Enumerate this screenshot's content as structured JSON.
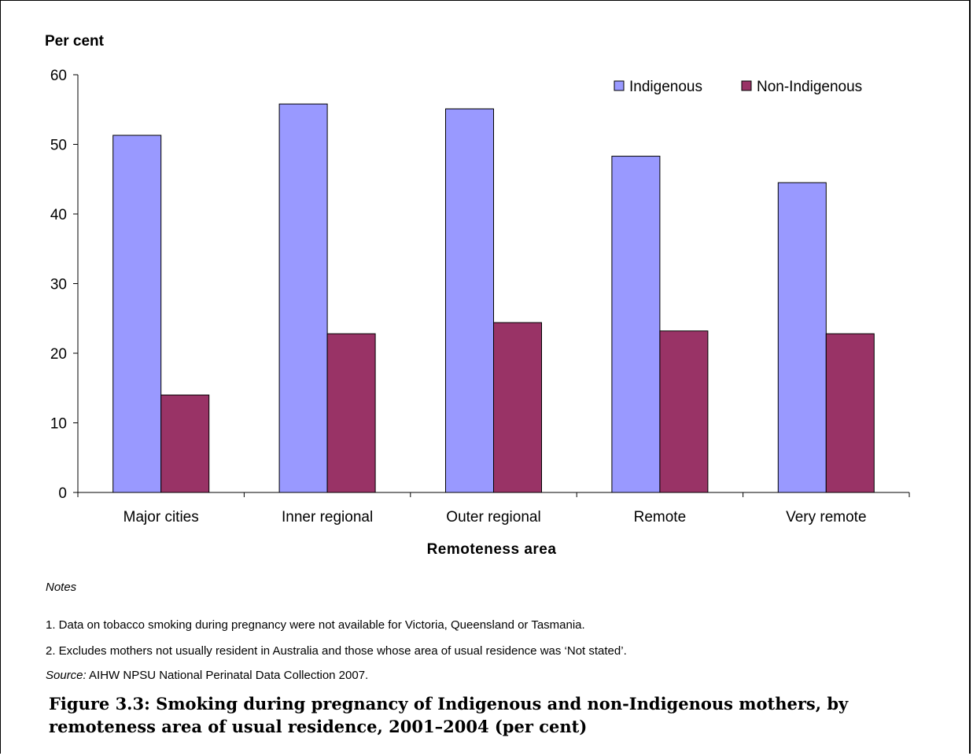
{
  "chart_data": {
    "type": "bar",
    "ylabel": "Per cent",
    "xlabel": "Remoteness area",
    "ylim": [
      0,
      60
    ],
    "yticks": [
      0,
      10,
      20,
      30,
      40,
      50,
      60
    ],
    "grid": false,
    "legend_position": "top-right",
    "categories": [
      "Major cities",
      "Inner regional",
      "Outer regional",
      "Remote",
      "Very remote"
    ],
    "series": [
      {
        "name": "Indigenous",
        "color": "#9999FF",
        "values": [
          51.3,
          55.8,
          55.1,
          48.3,
          44.5
        ]
      },
      {
        "name": "Non-Indigenous",
        "color": "#993366",
        "values": [
          14.0,
          22.8,
          24.4,
          23.2,
          22.8
        ]
      }
    ]
  },
  "notes": {
    "heading": "Notes",
    "items": [
      "1.  Data on tobacco smoking during pregnancy were not available for Victoria, Queensland or Tasmania.",
      "2.  Excludes mothers not usually resident in Australia and those whose area of usual residence was ‘Not stated’."
    ],
    "source_label": "Source:",
    "source_text": " AIHW NPSU National Perinatal Data Collection 2007."
  },
  "caption": {
    "line1": "Figure 3.3: Smoking during pregnancy of Indigenous and non-Indigenous mothers, by",
    "line2": "remoteness area of usual residence, 2001–2004 (per cent)"
  }
}
